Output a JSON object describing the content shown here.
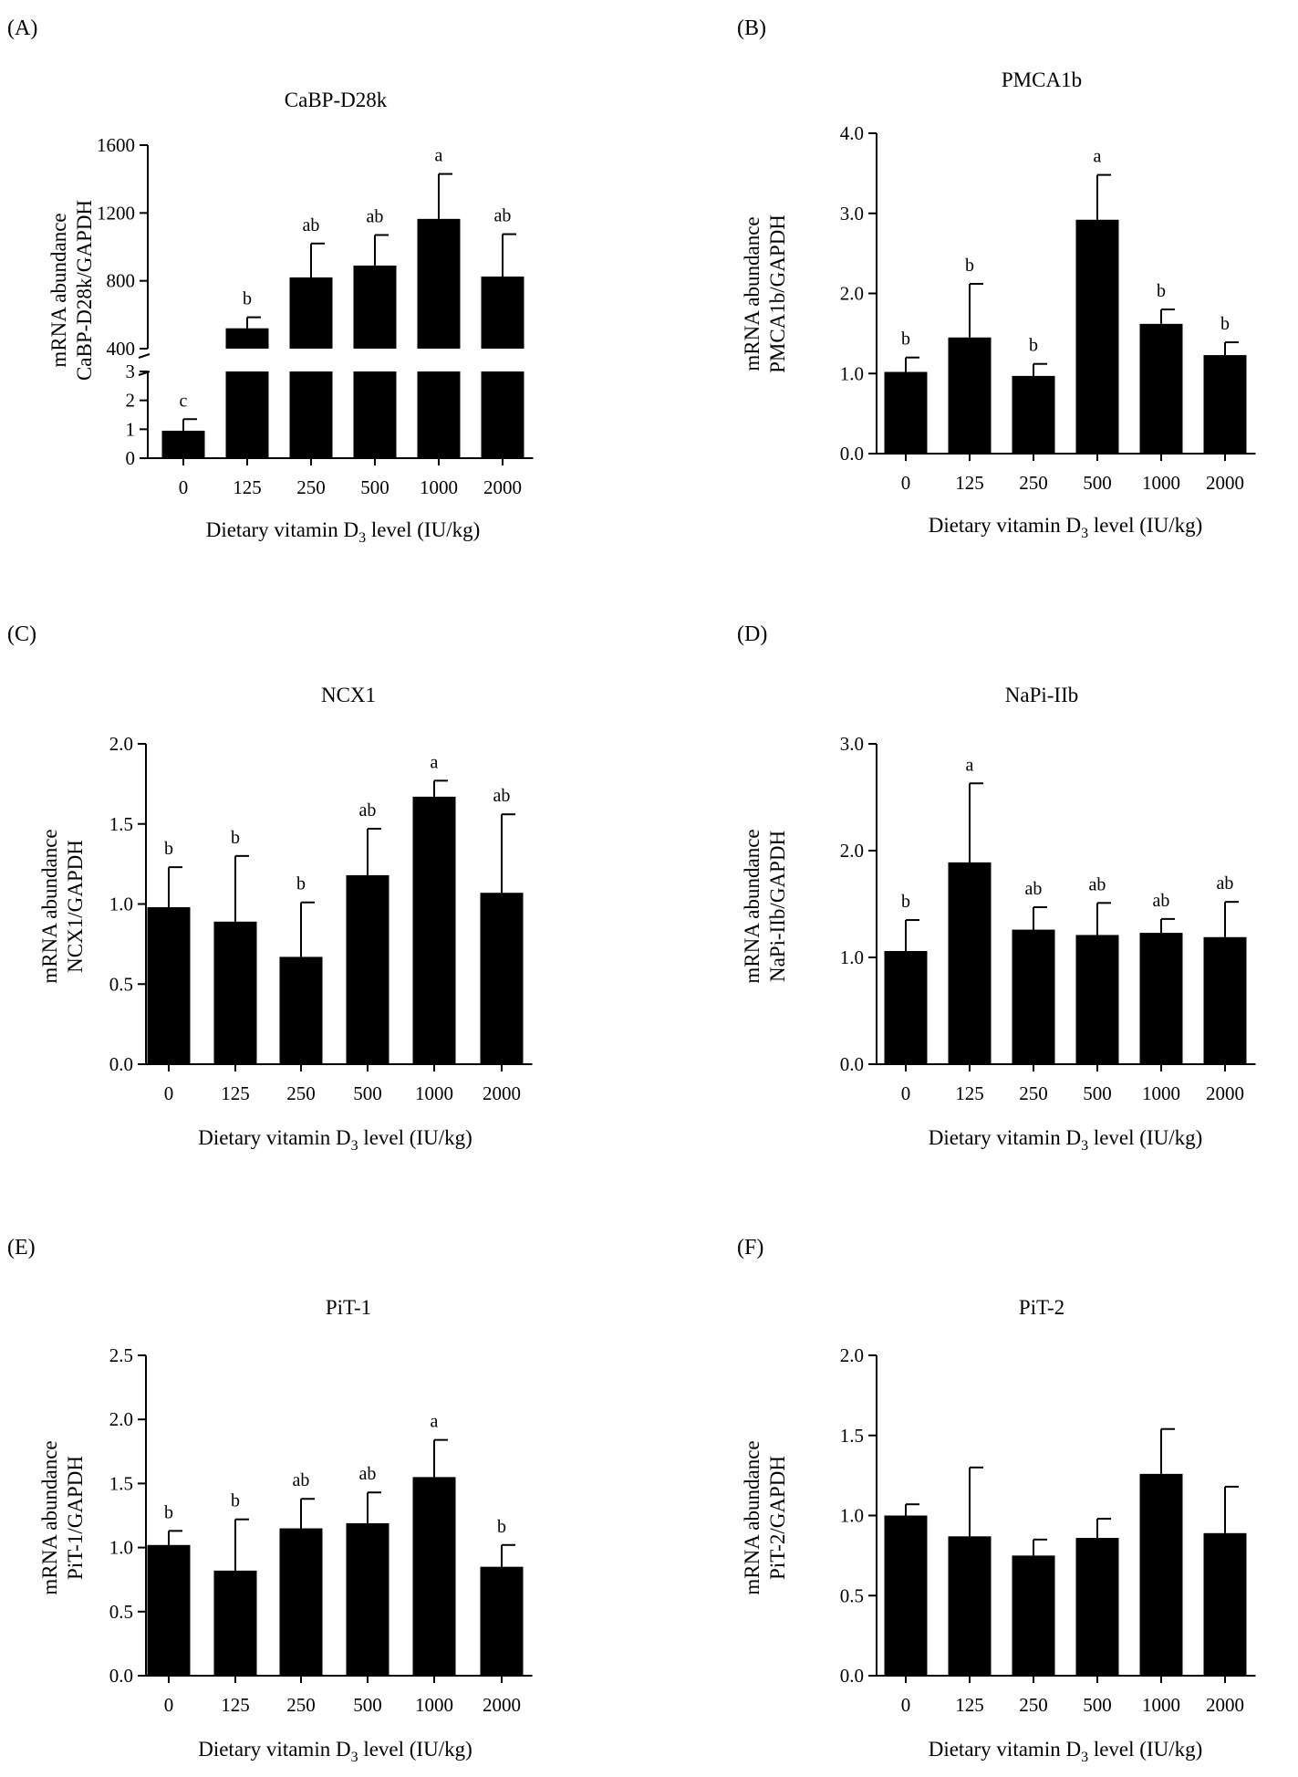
{
  "categories": [
    "0",
    "125",
    "250",
    "500",
    "1000",
    "2000"
  ],
  "colors": {
    "bars": "#000000",
    "axes": "#000000",
    "background": "#ffffff"
  },
  "chart_data": [
    {
      "panel": "(A)",
      "type": "bar",
      "title": "CaBP-D28k",
      "ylabel_line1": "mRNA abundance",
      "ylabel_line2": "CaBP-D28k/GAPDH",
      "xlabel_pre": "Dietary vitamin D",
      "xlabel_sub": "3",
      "xlabel_post": " level (IU/kg)",
      "categories": [
        "0",
        "125",
        "250",
        "500",
        "1000",
        "2000"
      ],
      "values": [
        0.95,
        520,
        820,
        890,
        1165,
        825
      ],
      "errors": [
        0.4,
        65,
        200,
        180,
        265,
        250
      ],
      "letters": [
        "c",
        "b",
        "ab",
        "ab",
        "a",
        "ab"
      ],
      "broken_axis": true,
      "lower_segment": {
        "ylim": [
          0,
          3
        ],
        "ticks": [
          "0",
          "1",
          "2",
          "3"
        ]
      },
      "upper_segment": {
        "ylim": [
          400,
          1600
        ],
        "ticks": [
          "400",
          "800",
          "1200",
          "1600"
        ]
      }
    },
    {
      "panel": "(B)",
      "type": "bar",
      "title": "PMCA1b",
      "ylabel_line1": "mRNA abundance",
      "ylabel_line2": "PMCA1b/GAPDH",
      "xlabel_pre": "Dietary vitamin D",
      "xlabel_sub": "3",
      "xlabel_post": " level (IU/kg)",
      "categories": [
        "0",
        "125",
        "250",
        "500",
        "1000",
        "2000"
      ],
      "values": [
        1.02,
        1.45,
        0.97,
        2.92,
        1.62,
        1.23
      ],
      "errors": [
        0.18,
        0.67,
        0.15,
        0.56,
        0.18,
        0.16
      ],
      "letters": [
        "b",
        "b",
        "b",
        "a",
        "b",
        "b"
      ],
      "ylim": [
        0,
        4.0
      ],
      "ticks": [
        "0.0",
        "1.0",
        "2.0",
        "3.0",
        "4.0"
      ]
    },
    {
      "panel": "(C)",
      "type": "bar",
      "title": "NCX1",
      "ylabel_line1": "mRNA abundance",
      "ylabel_line2": "NCX1/GAPDH",
      "xlabel_pre": "Dietary vitamin D",
      "xlabel_sub": "3",
      "xlabel_post": " level (IU/kg)",
      "categories": [
        "0",
        "125",
        "250",
        "500",
        "1000",
        "2000"
      ],
      "values": [
        0.98,
        0.89,
        0.67,
        1.18,
        1.67,
        1.07
      ],
      "errors": [
        0.25,
        0.41,
        0.34,
        0.29,
        0.1,
        0.49
      ],
      "letters": [
        "b",
        "b",
        "b",
        "ab",
        "a",
        "ab"
      ],
      "ylim": [
        0,
        2.0
      ],
      "ticks": [
        "0.0",
        "0.5",
        "1.0",
        "1.5",
        "2.0"
      ]
    },
    {
      "panel": "(D)",
      "type": "bar",
      "title": "NaPi-IIb",
      "ylabel_line1": "mRNA abundance",
      "ylabel_line2": "NaPi-IIb/GAPDH",
      "xlabel_pre": "Dietary vitamin D",
      "xlabel_sub": "3",
      "xlabel_post": " level (IU/kg)",
      "categories": [
        "0",
        "125",
        "250",
        "500",
        "1000",
        "2000"
      ],
      "values": [
        1.06,
        1.89,
        1.26,
        1.21,
        1.23,
        1.19
      ],
      "errors": [
        0.29,
        0.74,
        0.21,
        0.3,
        0.13,
        0.33
      ],
      "letters": [
        "b",
        "a",
        "ab",
        "ab",
        "ab",
        "ab"
      ],
      "ylim": [
        0,
        3.0
      ],
      "ticks": [
        "0.0",
        "1.0",
        "2.0",
        "3.0"
      ]
    },
    {
      "panel": "(E)",
      "type": "bar",
      "title": "PiT-1",
      "ylabel_line1": "mRNA abundance",
      "ylabel_line2": "PiT-1/GAPDH",
      "xlabel_pre": "Dietary vitamin D",
      "xlabel_sub": "3",
      "xlabel_post": " level (IU/kg)",
      "categories": [
        "0",
        "125",
        "250",
        "500",
        "1000",
        "2000"
      ],
      "values": [
        1.02,
        0.82,
        1.15,
        1.19,
        1.55,
        0.85
      ],
      "errors": [
        0.11,
        0.4,
        0.23,
        0.24,
        0.29,
        0.17
      ],
      "letters": [
        "b",
        "b",
        "ab",
        "ab",
        "a",
        "b"
      ],
      "ylim": [
        0,
        2.5
      ],
      "ticks": [
        "0.0",
        "0.5",
        "1.0",
        "1.5",
        "2.0",
        "2.5"
      ]
    },
    {
      "panel": "(F)",
      "type": "bar",
      "title": "PiT-2",
      "ylabel_line1": "mRNA abundance",
      "ylabel_line2": "PiT-2/GAPDH",
      "xlabel_pre": "Dietary vitamin D",
      "xlabel_sub": "3",
      "xlabel_post": " level (IU/kg)",
      "categories": [
        "0",
        "125",
        "250",
        "500",
        "1000",
        "2000"
      ],
      "values": [
        1.0,
        0.87,
        0.75,
        0.86,
        1.26,
        0.89
      ],
      "errors": [
        0.07,
        0.43,
        0.1,
        0.12,
        0.28,
        0.29
      ],
      "letters": [
        "",
        "",
        "",
        "",
        "",
        ""
      ],
      "ylim": [
        0,
        2.0
      ],
      "ticks": [
        "0.0",
        "0.5",
        "1.0",
        "1.5",
        "2.0"
      ]
    }
  ]
}
